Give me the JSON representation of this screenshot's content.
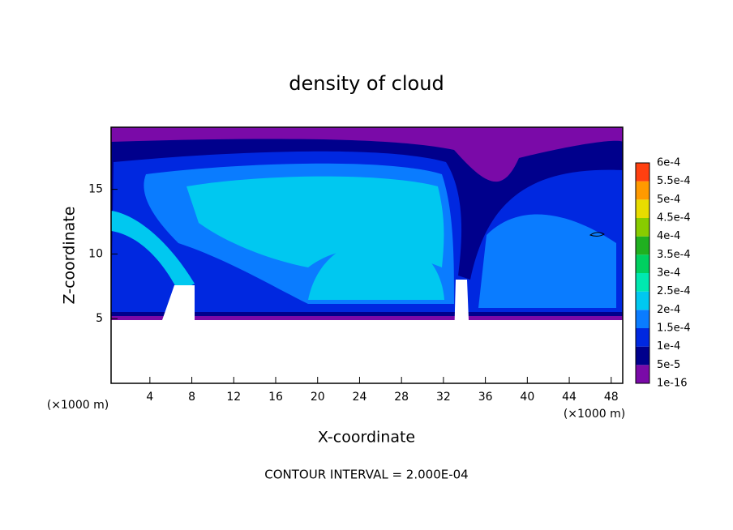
{
  "chart_data": {
    "type": "contour",
    "title": "density of cloud",
    "x_label": "X-coordinate",
    "y_label": "Z-coordinate",
    "x_unit": "(×1000 m)",
    "footer": "CONTOUR INTERVAL = 2.000E-04",
    "xlim": [
      0.3,
      49.1
    ],
    "xticks": [
      4,
      8,
      12,
      16,
      20,
      24,
      28,
      32,
      36,
      40,
      44,
      48
    ],
    "ylim": [
      0,
      19.8
    ],
    "yticks": [
      5,
      10,
      15
    ],
    "colorbar": {
      "levels": [
        {
          "value": 1e-16,
          "label": "1e-16"
        },
        {
          "value": 5e-05,
          "label": "5e-5"
        },
        {
          "value": 0.0001,
          "label": "1e-4"
        },
        {
          "value": 0.00015,
          "label": "1.5e-4"
        },
        {
          "value": 0.0002,
          "label": "2e-4"
        },
        {
          "value": 0.00025,
          "label": "2.5e-4"
        },
        {
          "value": 0.0003,
          "label": "3e-4"
        },
        {
          "value": 0.00035,
          "label": "3.5e-4"
        },
        {
          "value": 0.0004,
          "label": "4e-4"
        },
        {
          "value": 0.00045,
          "label": "4.5e-4"
        },
        {
          "value": 0.0005,
          "label": "5e-4"
        },
        {
          "value": 0.00055,
          "label": "5.5e-4"
        },
        {
          "value": 0.0006,
          "label": "6e-4"
        }
      ],
      "colors": [
        "#7a0aa8",
        "#00008c",
        "#0028e0",
        "#0a7cff",
        "#00c8f0",
        "#00e8b0",
        "#00d060",
        "#20b020",
        "#88cc00",
        "#e8dc00",
        "#ff9a00",
        "#ff4010",
        "#ff9090"
      ]
    }
  }
}
